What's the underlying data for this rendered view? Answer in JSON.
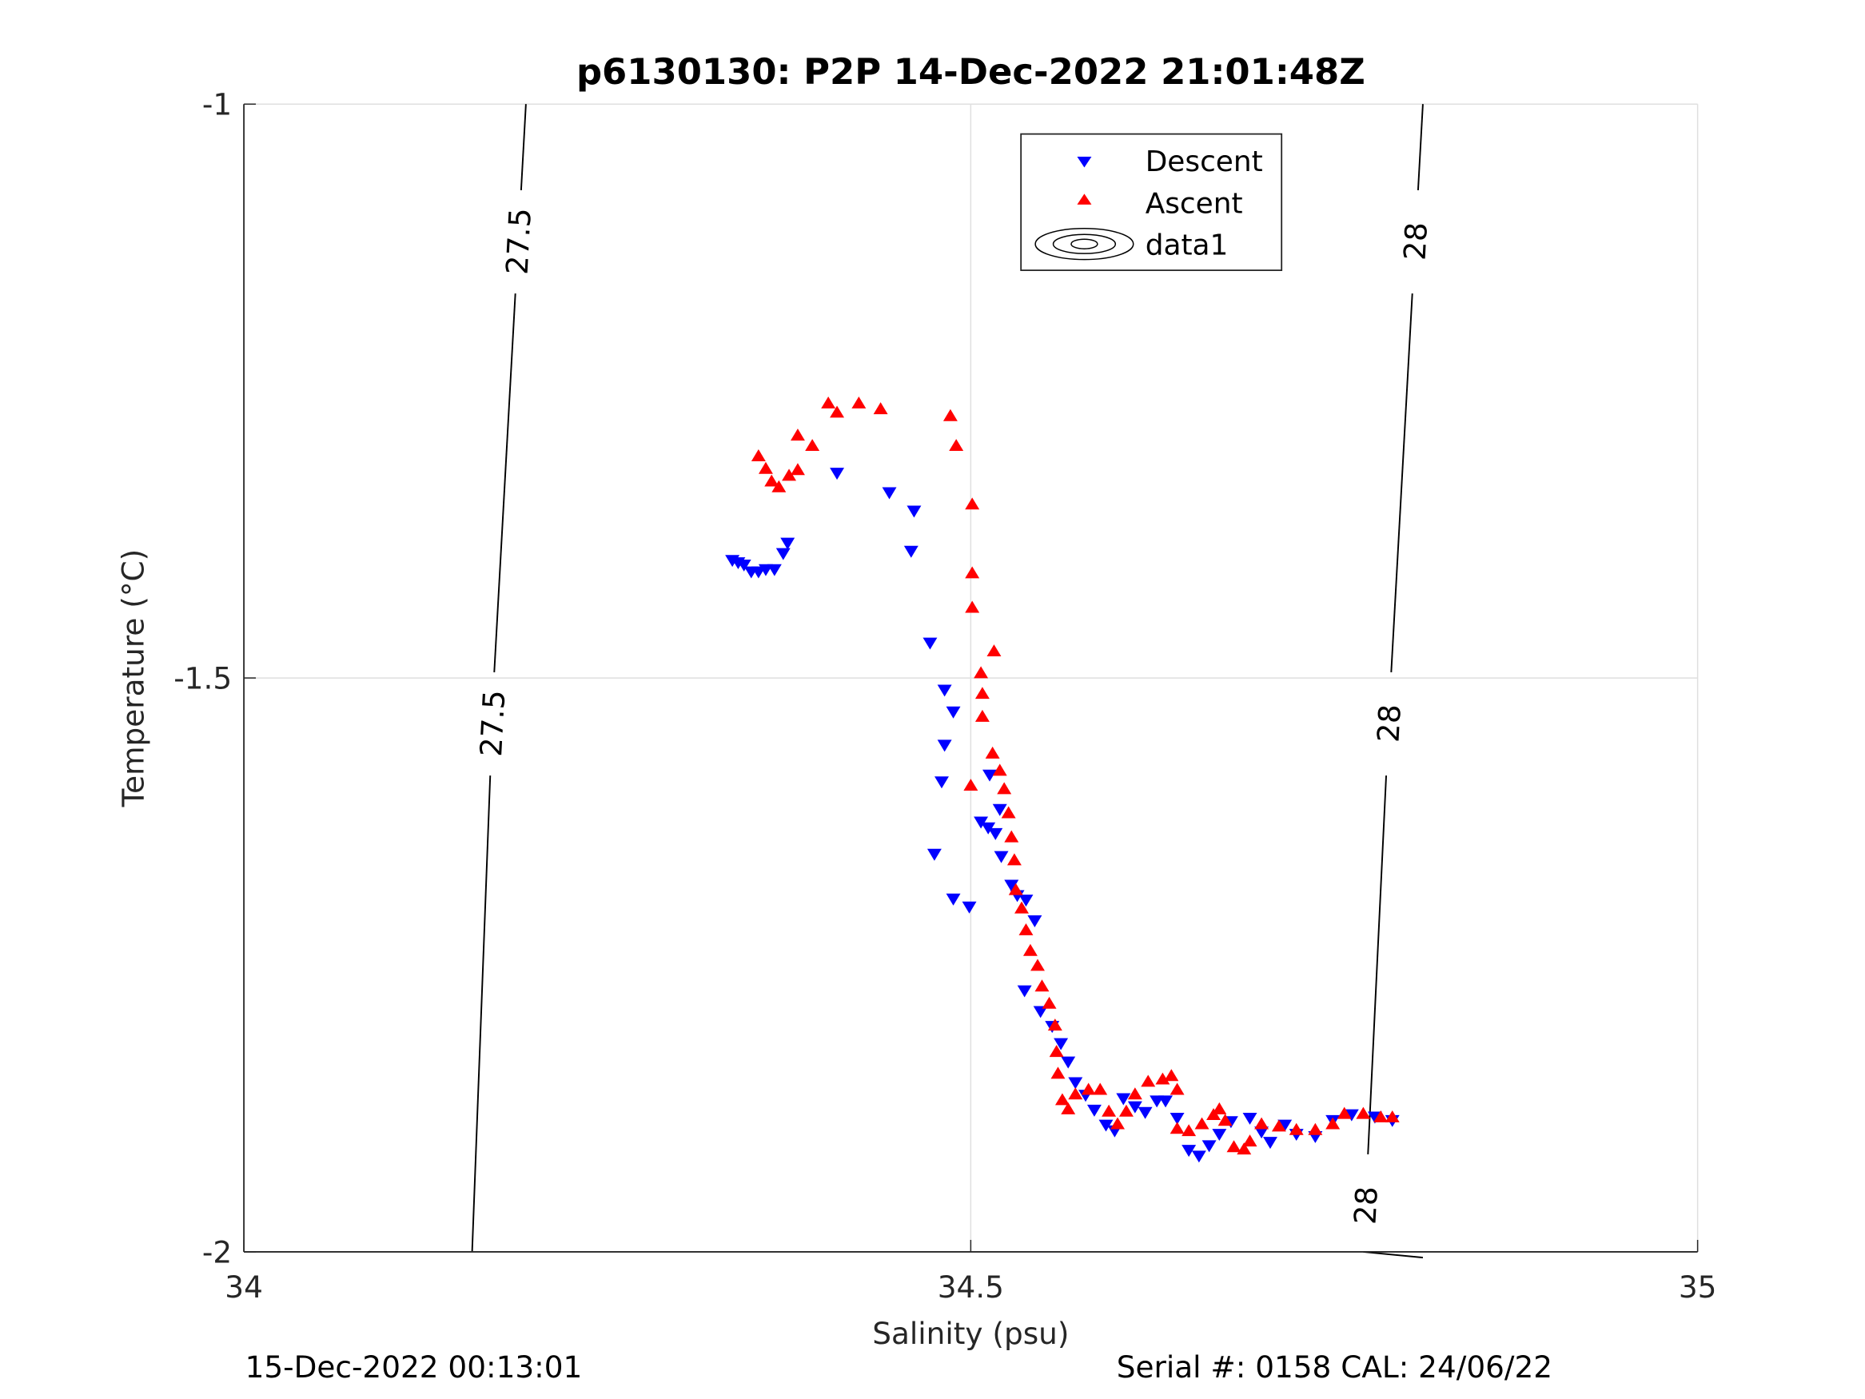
{
  "chart_data": {
    "type": "scatter",
    "title": "p6130130: P2P 14-Dec-2022 21:01:48Z",
    "xlabel": "Salinity (psu)",
    "ylabel": "Temperature (°C)",
    "xlim": [
      34,
      35
    ],
    "ylim": [
      -2,
      -1
    ],
    "xticks": [
      34,
      34.5,
      35
    ],
    "xtick_labels": [
      "34",
      "34.5",
      "35"
    ],
    "yticks": [
      -1,
      -1.5,
      -2
    ],
    "ytick_labels": [
      "-1",
      "-1.5",
      "-2"
    ],
    "grid": true,
    "legend": {
      "placement": "top-center",
      "entries": [
        "Descent",
        "Ascent",
        "data1"
      ]
    },
    "colors": {
      "descent": "#0000ff",
      "ascent": "#ff0000",
      "contour": "#000000",
      "grid": "#dfdfdf"
    },
    "series": [
      {
        "name": "Descent",
        "marker": "triangle-down",
        "points": [
          [
            34.336,
            -1.397
          ],
          [
            34.34,
            -1.399
          ],
          [
            34.344,
            -1.401
          ],
          [
            34.349,
            -1.407
          ],
          [
            34.354,
            -1.407
          ],
          [
            34.359,
            -1.405
          ],
          [
            34.365,
            -1.405
          ],
          [
            34.371,
            -1.391
          ],
          [
            34.374,
            -1.382
          ],
          [
            34.408,
            -1.321
          ],
          [
            34.444,
            -1.338
          ],
          [
            34.461,
            -1.354
          ],
          [
            34.459,
            -1.389
          ],
          [
            34.472,
            -1.469
          ],
          [
            34.482,
            -1.51
          ],
          [
            34.488,
            -1.529
          ],
          [
            34.482,
            -1.558
          ],
          [
            34.48,
            -1.59
          ],
          [
            34.475,
            -1.653
          ],
          [
            34.488,
            -1.692
          ],
          [
            34.499,
            -1.699
          ],
          [
            34.513,
            -1.584
          ],
          [
            34.52,
            -1.614
          ],
          [
            34.507,
            -1.625
          ],
          [
            34.512,
            -1.63
          ],
          [
            34.517,
            -1.635
          ],
          [
            34.521,
            -1.655
          ],
          [
            34.528,
            -1.68
          ],
          [
            34.532,
            -1.689
          ],
          [
            34.538,
            -1.693
          ],
          [
            34.544,
            -1.711
          ],
          [
            34.537,
            -1.772
          ],
          [
            34.548,
            -1.79
          ],
          [
            34.556,
            -1.803
          ],
          [
            34.562,
            -1.818
          ],
          [
            34.567,
            -1.834
          ],
          [
            34.572,
            -1.852
          ],
          [
            34.579,
            -1.863
          ],
          [
            34.585,
            -1.876
          ],
          [
            34.593,
            -1.889
          ],
          [
            34.599,
            -1.894
          ],
          [
            34.605,
            -1.866
          ],
          [
            34.613,
            -1.873
          ],
          [
            34.62,
            -1.878
          ],
          [
            34.628,
            -1.868
          ],
          [
            34.634,
            -1.868
          ],
          [
            34.642,
            -1.883
          ],
          [
            34.65,
            -1.911
          ],
          [
            34.657,
            -1.916
          ],
          [
            34.664,
            -1.907
          ],
          [
            34.671,
            -1.897
          ],
          [
            34.679,
            -1.886
          ],
          [
            34.692,
            -1.883
          ],
          [
            34.7,
            -1.895
          ],
          [
            34.706,
            -1.904
          ],
          [
            34.716,
            -1.889
          ],
          [
            34.724,
            -1.897
          ],
          [
            34.737,
            -1.899
          ],
          [
            34.749,
            -1.885
          ],
          [
            34.762,
            -1.88
          ],
          [
            34.778,
            -1.882
          ],
          [
            34.79,
            -1.885
          ]
        ]
      },
      {
        "name": "Ascent",
        "marker": "triangle-up",
        "points": [
          [
            34.354,
            -1.307
          ],
          [
            34.359,
            -1.318
          ],
          [
            34.363,
            -1.329
          ],
          [
            34.368,
            -1.334
          ],
          [
            34.375,
            -1.324
          ],
          [
            34.381,
            -1.319
          ],
          [
            34.391,
            -1.298
          ],
          [
            34.381,
            -1.289
          ],
          [
            34.402,
            -1.261
          ],
          [
            34.408,
            -1.269
          ],
          [
            34.423,
            -1.261
          ],
          [
            34.438,
            -1.266
          ],
          [
            34.486,
            -1.272
          ],
          [
            34.49,
            -1.298
          ],
          [
            34.501,
            -1.349
          ],
          [
            34.501,
            -1.409
          ],
          [
            34.501,
            -1.439
          ],
          [
            34.516,
            -1.477
          ],
          [
            34.507,
            -1.496
          ],
          [
            34.508,
            -1.514
          ],
          [
            34.508,
            -1.534
          ],
          [
            34.5,
            -1.594
          ],
          [
            34.515,
            -1.566
          ],
          [
            34.52,
            -1.581
          ],
          [
            34.523,
            -1.597
          ],
          [
            34.526,
            -1.618
          ],
          [
            34.528,
            -1.639
          ],
          [
            34.53,
            -1.659
          ],
          [
            34.531,
            -1.685
          ],
          [
            34.535,
            -1.701
          ],
          [
            34.538,
            -1.72
          ],
          [
            34.541,
            -1.738
          ],
          [
            34.546,
            -1.751
          ],
          [
            34.549,
            -1.769
          ],
          [
            34.554,
            -1.784
          ],
          [
            34.558,
            -1.803
          ],
          [
            34.559,
            -1.826
          ],
          [
            34.56,
            -1.845
          ],
          [
            34.563,
            -1.868
          ],
          [
            34.567,
            -1.876
          ],
          [
            34.572,
            -1.863
          ],
          [
            34.581,
            -1.859
          ],
          [
            34.589,
            -1.859
          ],
          [
            34.595,
            -1.878
          ],
          [
            34.601,
            -1.889
          ],
          [
            34.607,
            -1.878
          ],
          [
            34.613,
            -1.863
          ],
          [
            34.622,
            -1.852
          ],
          [
            34.632,
            -1.85
          ],
          [
            34.638,
            -1.847
          ],
          [
            34.642,
            -1.859
          ],
          [
            34.642,
            -1.893
          ],
          [
            34.65,
            -1.895
          ],
          [
            34.659,
            -1.889
          ],
          [
            34.667,
            -1.881
          ],
          [
            34.671,
            -1.876
          ],
          [
            34.675,
            -1.886
          ],
          [
            34.681,
            -1.909
          ],
          [
            34.688,
            -1.911
          ],
          [
            34.692,
            -1.904
          ],
          [
            34.7,
            -1.889
          ],
          [
            34.712,
            -1.891
          ],
          [
            34.724,
            -1.894
          ],
          [
            34.737,
            -1.894
          ],
          [
            34.749,
            -1.889
          ],
          [
            34.757,
            -1.88
          ],
          [
            34.77,
            -1.88
          ],
          [
            34.782,
            -1.883
          ],
          [
            34.79,
            -1.883
          ]
        ]
      }
    ],
    "contours": [
      {
        "level": "27.5",
        "points": [
          [
            34.194,
            -1.0
          ],
          [
            34.172,
            -1.5
          ],
          [
            34.157,
            -2.0
          ]
        ],
        "label_at_T": [
          -1.12,
          -1.54
        ]
      },
      {
        "level": "28",
        "points": [
          [
            34.811,
            -1.0
          ],
          [
            34.789,
            -1.5
          ],
          [
            34.77,
            -2.0
          ]
        ],
        "label_at_T": [
          -1.12,
          -1.54,
          -1.96
        ]
      }
    ]
  },
  "footer": {
    "left": "15-Dec-2022 00:13:01",
    "right": "Serial #: 0158  CAL: 24/06/22"
  }
}
